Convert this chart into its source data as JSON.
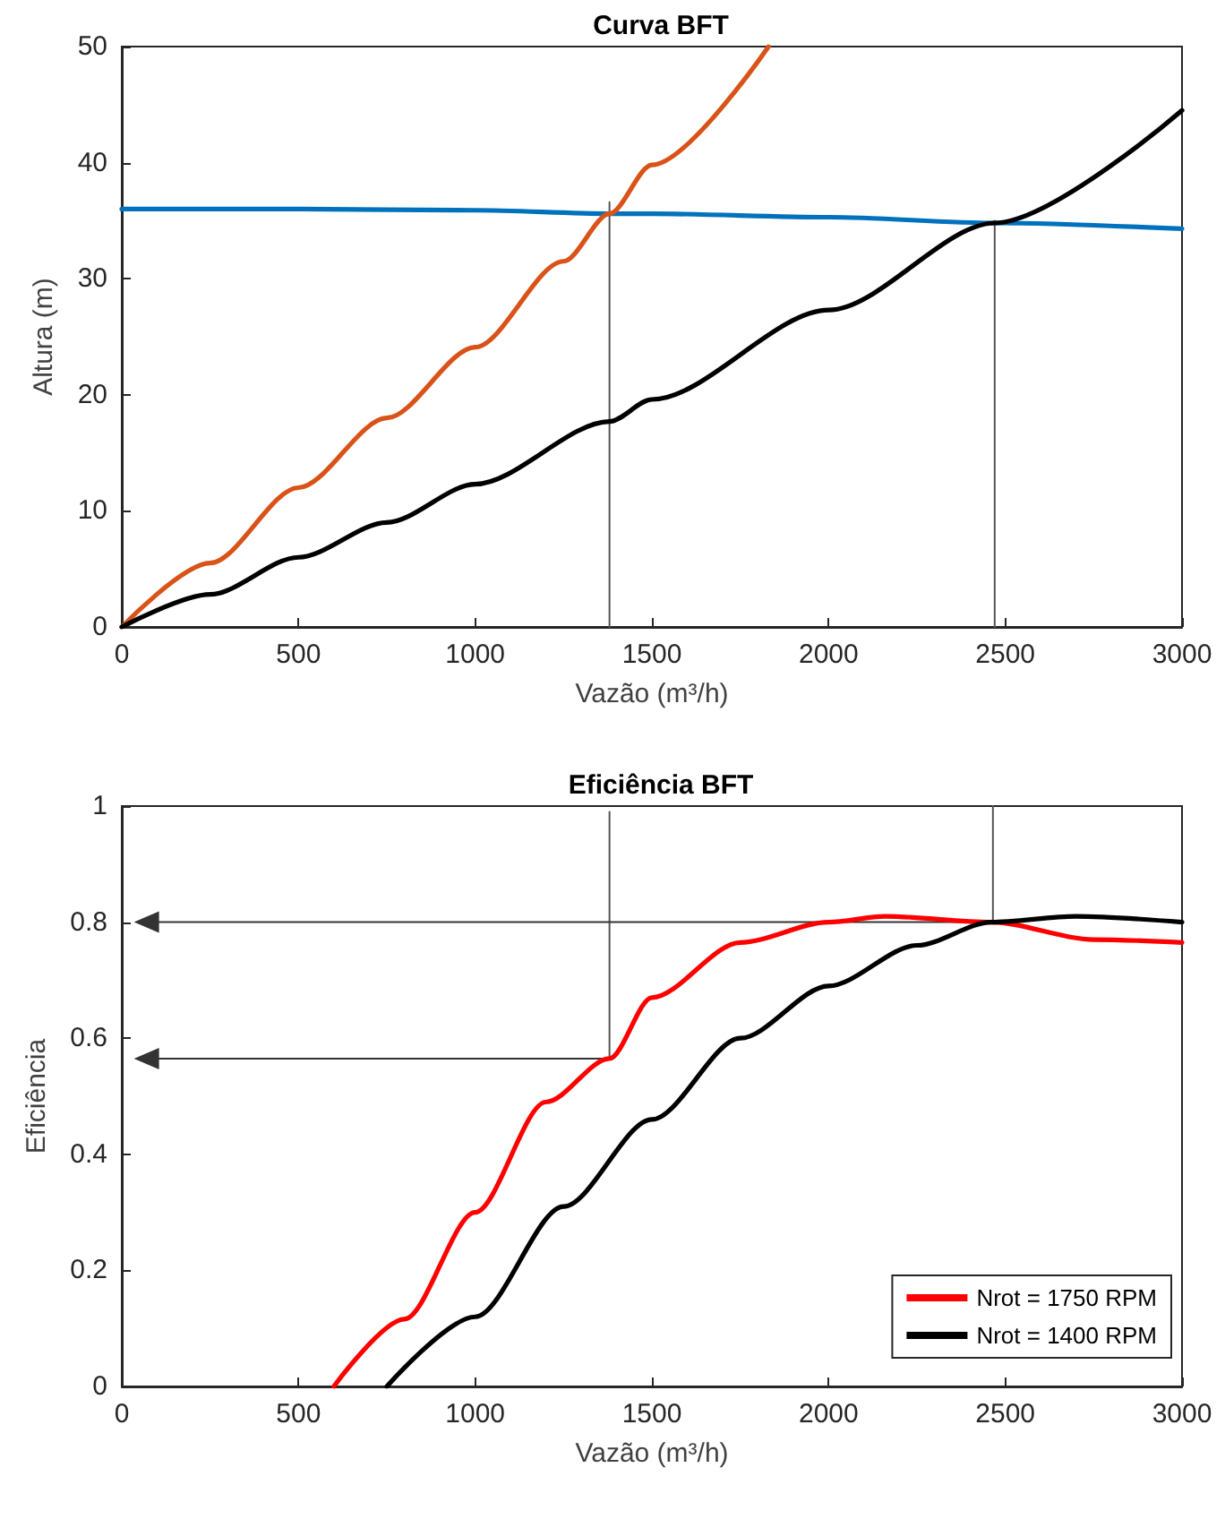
{
  "chart_data": [
    {
      "type": "line",
      "title": "Curva BFT",
      "xlabel": "Vazão (m³/h)",
      "ylabel": "Altura (m)",
      "xlim": [
        0,
        3000
      ],
      "xticks": [
        0,
        500,
        1000,
        1500,
        2000,
        2500,
        3000
      ],
      "ylim": [
        0,
        50
      ],
      "yticks": [
        0,
        10,
        20,
        30,
        40,
        50
      ],
      "grid": false,
      "legend": false,
      "marker": "none",
      "line_style": "solid",
      "series": [
        {
          "color": "#0072bd",
          "x": [
            0,
            500,
            1000,
            1380,
            1500,
            2000,
            2470,
            3000
          ],
          "values": [
            36,
            36,
            35.9,
            35.6,
            35.6,
            35.3,
            34.8,
            34.3
          ]
        },
        {
          "color": "#d95319",
          "x": [
            0,
            250,
            500,
            750,
            1000,
            1250,
            1380,
            1500,
            1830
          ],
          "values": [
            0,
            5.5,
            12,
            18,
            24.1,
            31.5,
            35.6,
            39.8,
            50
          ]
        },
        {
          "color": "#000000",
          "x": [
            0,
            250,
            500,
            750,
            1000,
            1380,
            1500,
            2000,
            2470,
            3000
          ],
          "values": [
            0,
            2.8,
            6,
            9,
            12.3,
            17.7,
            19.6,
            27.3,
            34.8,
            44.5
          ]
        },
        {
          "color": "#555555",
          "x": [
            1380,
            1380
          ],
          "values": [
            0,
            36.6
          ]
        },
        {
          "color": "#555555",
          "x": [
            2470,
            2470
          ],
          "values": [
            0,
            35
          ]
        }
      ]
    },
    {
      "type": "line",
      "title": "Eficiência BFT",
      "xlabel": "Vazão (m³/h)",
      "ylabel": "Eficiência",
      "xlim": [
        0,
        3000
      ],
      "xticks": [
        0,
        500,
        1000,
        1500,
        2000,
        2500,
        3000
      ],
      "ylim": [
        0,
        1
      ],
      "yticks": [
        0,
        0.2,
        0.4,
        0.6,
        0.8,
        1
      ],
      "grid": false,
      "legend": "bottom right",
      "marker": "none",
      "line_style": "solid",
      "series": [
        {
          "name": "Nrot = 1750 RPM",
          "color": "#ff0000",
          "x": [
            600,
            800,
            1000,
            1200,
            1380,
            1500,
            1750,
            2000,
            2160,
            2460,
            2750,
            3000
          ],
          "values": [
            0,
            0.116,
            0.3,
            0.49,
            0.565,
            0.67,
            0.765,
            0.8,
            0.81,
            0.8,
            0.77,
            0.765
          ]
        },
        {
          "name": "Nrot = 1400 RPM",
          "color": "#000000",
          "x": [
            750,
            1000,
            1250,
            1500,
            1750,
            2000,
            2250,
            2460,
            2700,
            3000
          ],
          "values": [
            0,
            0.12,
            0.31,
            0.46,
            0.6,
            0.69,
            0.76,
            0.8,
            0.81,
            0.8
          ]
        },
        {
          "color": "#555555",
          "x": [
            1380,
            1380
          ],
          "values": [
            0.565,
            0.99
          ]
        },
        {
          "color": "#555555",
          "x": [
            2465,
            2465
          ],
          "values": [
            0.8,
            1
          ]
        },
        {
          "color": "#333333",
          "marker": "triangle",
          "x": [
            70,
            2465
          ],
          "values": [
            0.8,
            0.8
          ]
        },
        {
          "color": "#333333",
          "marker": "triangle",
          "x": [
            70,
            1380
          ],
          "values": [
            0.565,
            0.565
          ]
        }
      ]
    }
  ]
}
